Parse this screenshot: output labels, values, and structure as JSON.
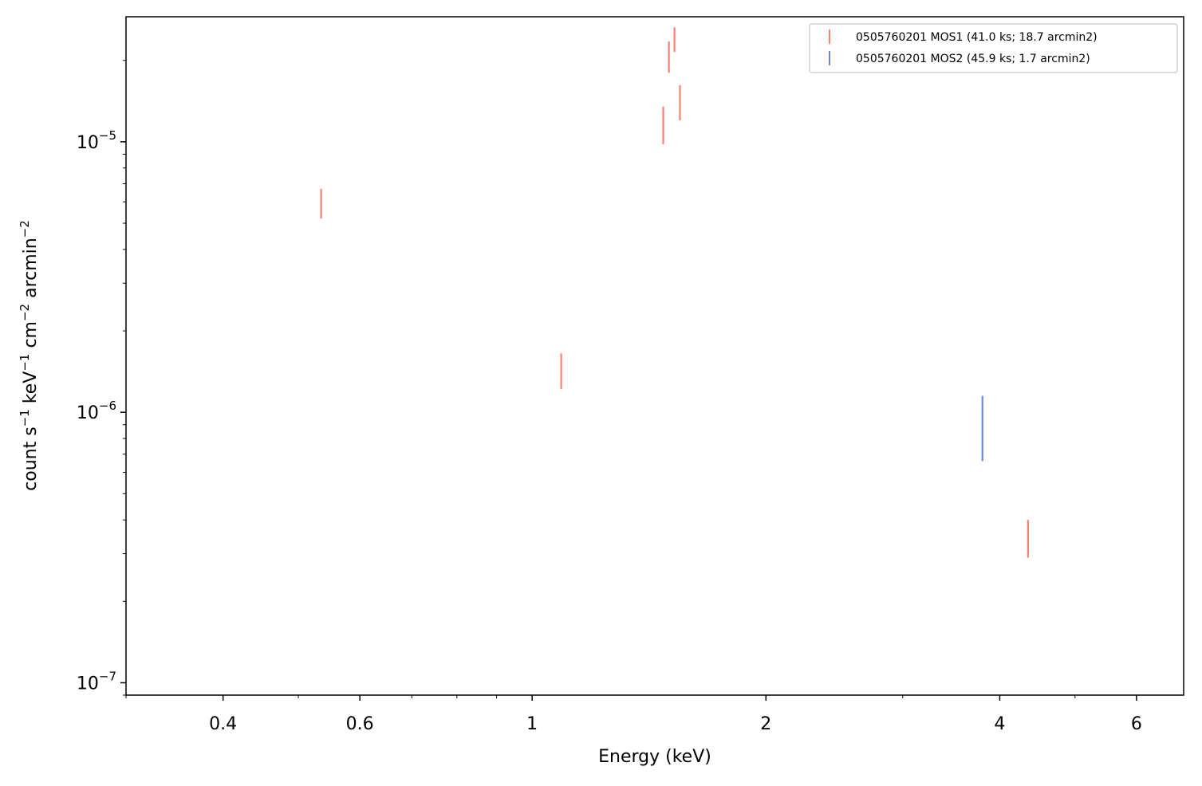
{
  "chart_data": {
    "type": "scatter",
    "title": "",
    "xlabel": "Energy (keV)",
    "ylabel_parts": [
      "count s",
      "−1",
      " keV",
      "−1",
      " cm",
      "−2",
      " arcmin",
      "−2"
    ],
    "xscale": "log",
    "yscale": "log",
    "xlim": [
      0.3,
      6.9
    ],
    "ylim": [
      9e-08,
      2.9e-05
    ],
    "grid": false,
    "legend_position": "top-right",
    "x_tick_labels": [
      {
        "value": 0.4,
        "label": "0.4"
      },
      {
        "value": 0.6,
        "label": "0.6"
      },
      {
        "value": 1,
        "label": "1"
      },
      {
        "value": 2,
        "label": "2"
      },
      {
        "value": 4,
        "label": "4"
      },
      {
        "value": 6,
        "label": "6"
      }
    ],
    "y_tick_labels": [
      {
        "value": 1e-07,
        "base": "10",
        "exp": "−7"
      },
      {
        "value": 1e-06,
        "base": "10",
        "exp": "−6"
      },
      {
        "value": 1e-05,
        "base": "10",
        "exp": "−5"
      }
    ],
    "series": [
      {
        "name": "0505760201 MOS1 (41.0 ks; 18.7 arcmin2)",
        "color": "#fa8072",
        "points": [
          {
            "x": 0.535,
            "ylo": 5.2e-06,
            "yhi": 6.7e-06
          },
          {
            "x": 1.09,
            "ylo": 1.22e-06,
            "yhi": 1.65e-06
          },
          {
            "x": 1.475,
            "ylo": 9.8e-06,
            "yhi": 1.35e-05
          },
          {
            "x": 1.5,
            "ylo": 1.8e-05,
            "yhi": 2.35e-05
          },
          {
            "x": 1.525,
            "ylo": 2.15e-05,
            "yhi": 2.65e-05
          },
          {
            "x": 1.55,
            "ylo": 1.2e-05,
            "yhi": 1.62e-05
          },
          {
            "x": 4.35,
            "ylo": 2.9e-07,
            "yhi": 4e-07
          }
        ]
      },
      {
        "name": "0505760201 MOS2 (45.9 ks; 1.7 arcmin2)",
        "color": "#6a86e0",
        "points": [
          {
            "x": 3.8,
            "ylo": 6.6e-07,
            "yhi": 1.15e-06
          }
        ]
      }
    ]
  }
}
